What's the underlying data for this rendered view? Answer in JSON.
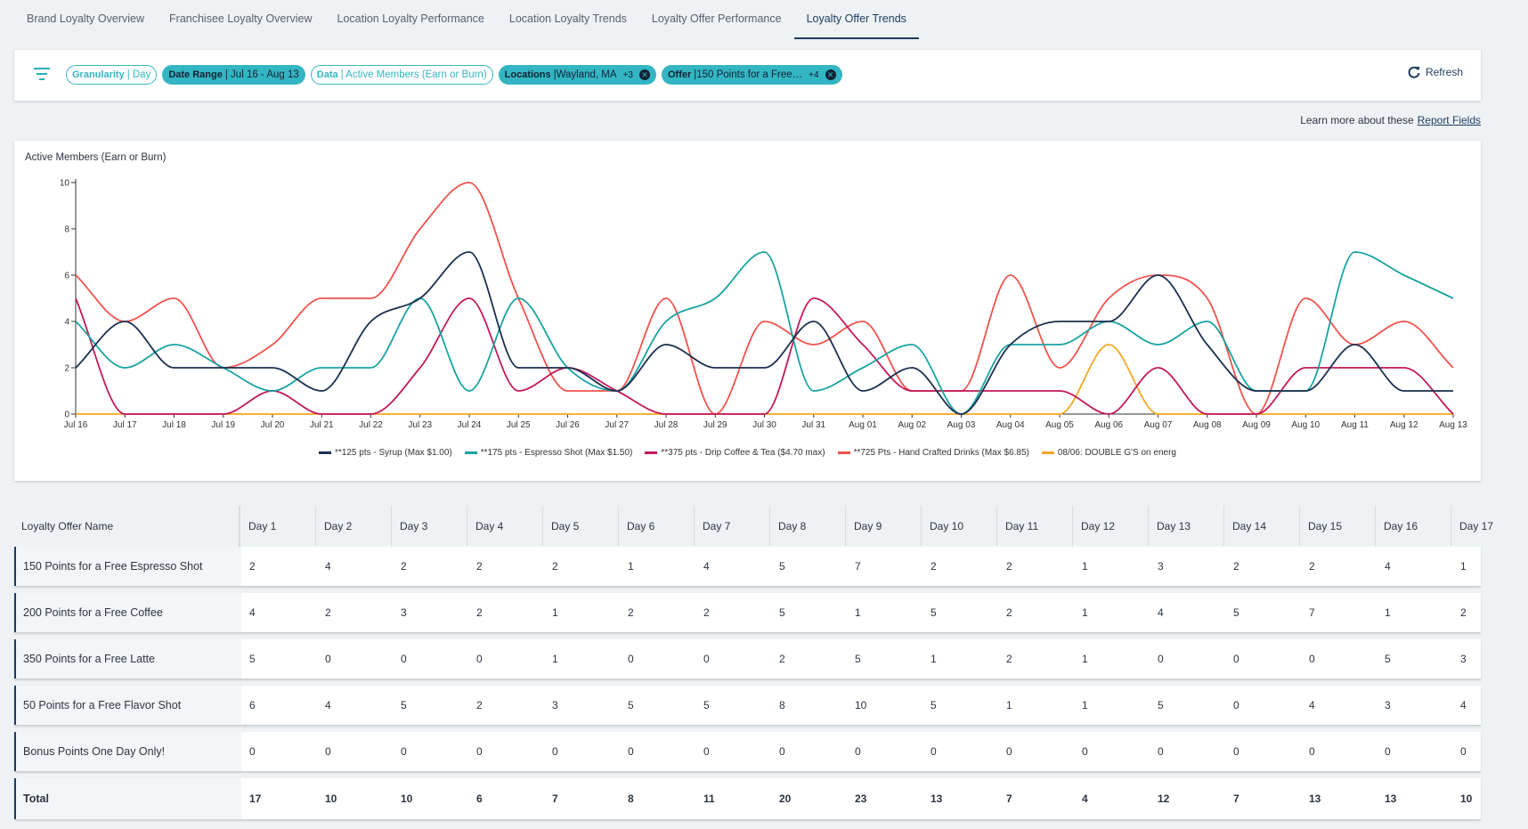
{
  "tabs": {
    "items": [
      "Brand Loyalty Overview",
      "Franchisee Loyalty Overview",
      "Location Loyalty Performance",
      "Location Loyalty Trends",
      "Loyalty Offer Performance",
      "Loyalty Offer Trends"
    ],
    "active": 5
  },
  "filters": {
    "chips": [
      {
        "label": "Granularity",
        "value": "| Day",
        "style": "outline"
      },
      {
        "label": "Date Range",
        "value": "| Jul 16 - Aug 13",
        "style": "filled"
      },
      {
        "label": "Data",
        "value": "| Active Members (Earn or Burn)",
        "style": "outline"
      },
      {
        "label": "Locations",
        "value": "|Wayland, MA",
        "more": "+3",
        "style": "filled",
        "closable": true
      },
      {
        "label": "Offer",
        "value": "|150 Points for a Free…",
        "more": "+4",
        "style": "filled",
        "closable": true
      }
    ],
    "refresh": "Refresh"
  },
  "help": {
    "text": "Learn more about these",
    "link": "Report Fields"
  },
  "chart_data": {
    "type": "line",
    "y_label": "Active Members (Earn or Burn)",
    "x": [
      "Jul 16",
      "Jul 17",
      "Jul 18",
      "Jul 19",
      "Jul 20",
      "Jul 21",
      "Jul 22",
      "Jul 23",
      "Jul 24",
      "Jul 25",
      "Jul 26",
      "Jul 27",
      "Jul 28",
      "Jul 29",
      "Jul 30",
      "Jul 31",
      "Aug 01",
      "Aug 02",
      "Aug 03",
      "Aug 04",
      "Aug 05",
      "Aug 06",
      "Aug 07",
      "Aug 08",
      "Aug 09",
      "Aug 10",
      "Aug 11",
      "Aug 12",
      "Aug 13"
    ],
    "ylim": [
      0,
      10
    ],
    "yticks": [
      0,
      2,
      4,
      6,
      8,
      10
    ],
    "series": [
      {
        "name": "**125 pts - Syrup (Max $1.00)",
        "color": "#1b2f4f",
        "values": [
          2,
          4,
          2,
          2,
          2,
          1,
          4,
          5,
          7,
          2,
          2,
          1,
          3,
          2,
          2,
          4,
          1,
          2,
          0,
          3,
          4,
          4,
          6,
          3,
          1,
          1,
          3,
          1,
          1
        ]
      },
      {
        "name": "**175 pts - Espresso Shot (Max $1.50)",
        "color": "#18a3a1",
        "values": [
          4,
          2,
          3,
          2,
          1,
          2,
          2,
          5,
          1,
          5,
          2,
          1,
          4,
          5,
          7,
          1,
          2,
          3,
          0,
          3,
          3,
          4,
          3,
          4,
          1,
          1,
          7,
          6,
          5
        ]
      },
      {
        "name": "**375 pts - Drip Coffee & Tea ($4.70 max)",
        "color": "#c2185b",
        "values": [
          5,
          0,
          0,
          0,
          1,
          0,
          0,
          2,
          5,
          1,
          2,
          1,
          0,
          0,
          0,
          5,
          3,
          1,
          1,
          1,
          1,
          0,
          2,
          0,
          0,
          2,
          2,
          2,
          0
        ]
      },
      {
        "name": "**725 Pts - Hand Crafted Drinks (Max $6.85)",
        "color": "#f0524d",
        "values": [
          6,
          4,
          5,
          2,
          3,
          5,
          5,
          8,
          10,
          5,
          1,
          1,
          5,
          0,
          4,
          3,
          4,
          1,
          1,
          6,
          2,
          5,
          6,
          5,
          0,
          5,
          3,
          4,
          2
        ]
      },
      {
        "name": "08/06: DOUBLE G'S on energ",
        "color": "#f5a623",
        "values": [
          0,
          0,
          0,
          0,
          0,
          0,
          0,
          0,
          0,
          0,
          0,
          0,
          0,
          0,
          0,
          0,
          0,
          0,
          0,
          0,
          0,
          3,
          0,
          0,
          0,
          0,
          0,
          0,
          0
        ]
      }
    ]
  },
  "table": {
    "header": [
      "Loyalty Offer Name",
      "Day 1",
      "Day 2",
      "Day 3",
      "Day 4",
      "Day 5",
      "Day 6",
      "Day 7",
      "Day 8",
      "Day 9",
      "Day 10",
      "Day 11",
      "Day 12",
      "Day 13",
      "Day 14",
      "Day 15",
      "Day 16",
      "Day 17"
    ],
    "rows": [
      [
        "150 Points for a Free Espresso Shot",
        2,
        4,
        2,
        2,
        2,
        1,
        4,
        5,
        7,
        2,
        2,
        1,
        3,
        2,
        2,
        4,
        1
      ],
      [
        "200 Points for a Free Coffee",
        4,
        2,
        3,
        2,
        1,
        2,
        2,
        5,
        1,
        5,
        2,
        1,
        4,
        5,
        7,
        1,
        2
      ],
      [
        "350 Points for a Free Latte",
        5,
        0,
        0,
        0,
        1,
        0,
        0,
        2,
        5,
        1,
        2,
        1,
        0,
        0,
        0,
        5,
        3
      ],
      [
        "50 Points for a Free Flavor Shot",
        6,
        4,
        5,
        2,
        3,
        5,
        5,
        8,
        10,
        5,
        1,
        1,
        5,
        0,
        4,
        3,
        4
      ],
      [
        "Bonus Points One Day Only!",
        0,
        0,
        0,
        0,
        0,
        0,
        0,
        0,
        0,
        0,
        0,
        0,
        0,
        0,
        0,
        0,
        0
      ],
      [
        "Total",
        17,
        10,
        10,
        6,
        7,
        8,
        11,
        20,
        23,
        13,
        7,
        4,
        12,
        7,
        13,
        13,
        10
      ]
    ]
  }
}
